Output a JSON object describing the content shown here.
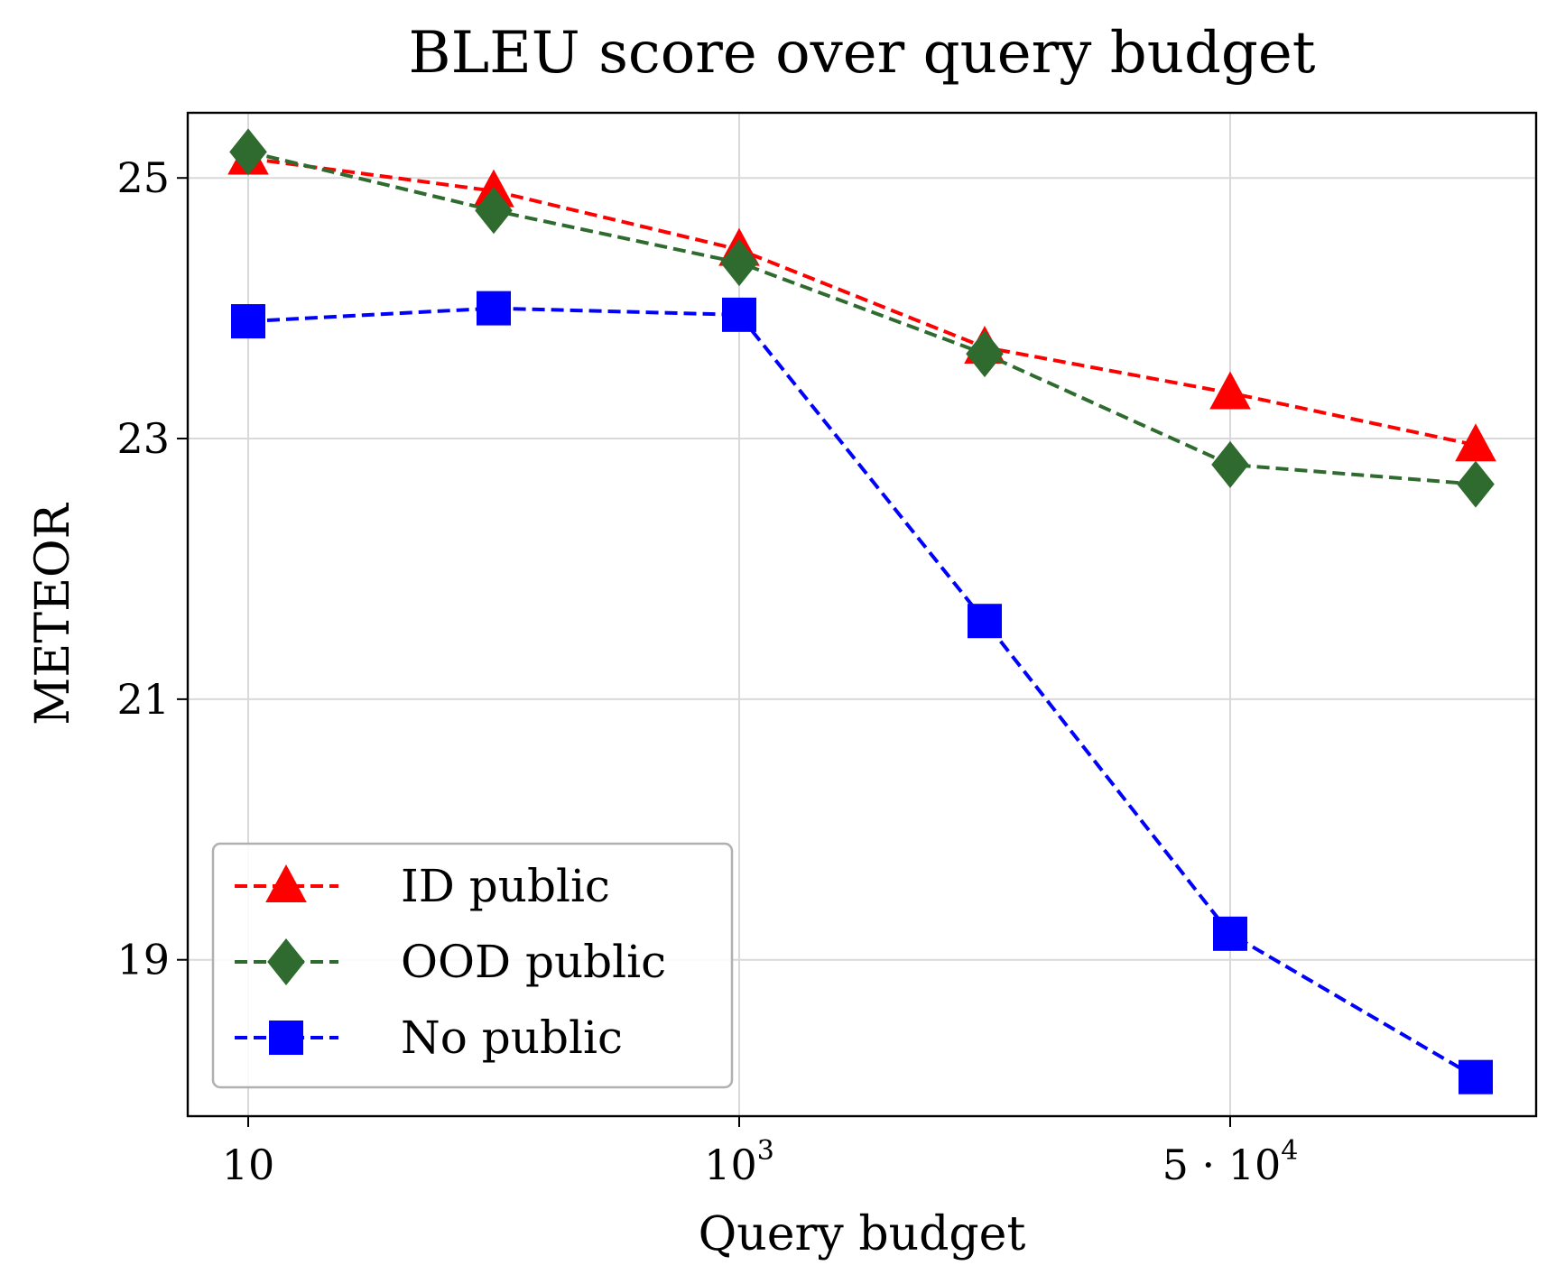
{
  "chart_data": {
    "type": "line",
    "title": "BLEU score over query budget",
    "xlabel": "Query budget",
    "ylabel": "METEOR",
    "x_ticks": [
      {
        "base": "10",
        "sup": ""
      },
      {
        "base": "10",
        "sup": "3"
      },
      {
        "base": "5 · 10",
        "sup": "4"
      }
    ],
    "y_ticks": [
      "19",
      "21",
      "23",
      "25"
    ],
    "ylim": [
      17.8,
      25.5
    ],
    "grid": true,
    "legend_position": "lower-left",
    "categories": [
      "10",
      "",
      "10^3",
      "",
      "5·10^4",
      ""
    ],
    "series": [
      {
        "name": "ID public",
        "color": "#ff0000",
        "marker": "triangle",
        "values": [
          25.15,
          24.9,
          24.45,
          23.7,
          23.35,
          22.95
        ]
      },
      {
        "name": "OOD public",
        "color": "#2f6b2f",
        "marker": "diamond",
        "values": [
          25.2,
          24.75,
          24.35,
          23.65,
          22.8,
          22.65
        ]
      },
      {
        "name": "No public",
        "color": "#0000ff",
        "marker": "square",
        "values": [
          23.9,
          24.0,
          23.95,
          21.6,
          19.2,
          18.1
        ]
      }
    ]
  }
}
